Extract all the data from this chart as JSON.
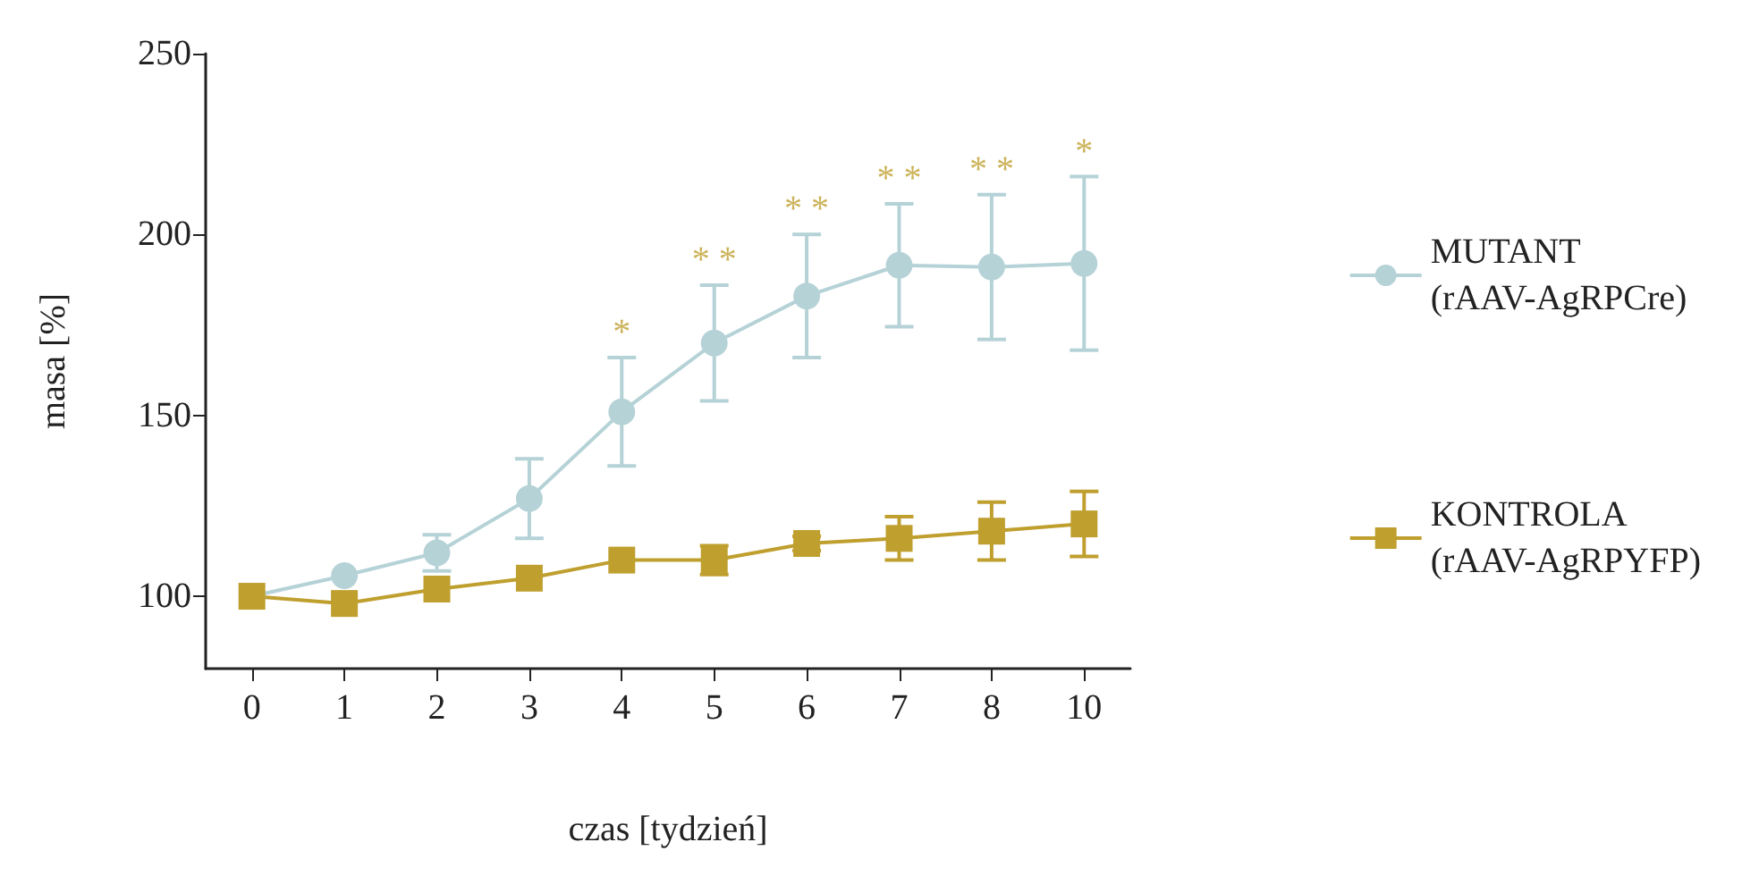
{
  "chart_data": {
    "type": "line",
    "xlabel": "czas [tydzień]",
    "ylabel": "masa [%]",
    "categories": [
      "0",
      "1",
      "2",
      "3",
      "4",
      "5",
      "6",
      "7",
      "8",
      "10"
    ],
    "series": [
      {
        "name": "MUTANT\n(rAAV-AgRPCre)",
        "color": "#b5d2d7",
        "marker": "circle",
        "values": [
          100,
          105.7,
          112,
          127,
          151,
          170,
          183,
          191.5,
          191,
          192
        ],
        "errors": [
          null,
          null,
          5,
          11,
          15,
          16,
          17,
          17,
          20,
          24
        ]
      },
      {
        "name": "KONTROLA\n(rAAV-AgRPYFP)",
        "color": "#bf9f2e",
        "marker": "square",
        "values": [
          100,
          98,
          102,
          105,
          110,
          110,
          114.6,
          116,
          118,
          120
        ],
        "errors": [
          null,
          null,
          null,
          null,
          null,
          4,
          2,
          6,
          8,
          9
        ]
      }
    ],
    "annotations": [
      "*",
      "* *",
      "* *",
      "* *",
      "* *",
      "*"
    ],
    "ylim": [
      80,
      250
    ],
    "yticks": [
      100,
      150,
      200,
      250
    ],
    "grid": false,
    "legend": "right",
    "line_style": "solid"
  }
}
